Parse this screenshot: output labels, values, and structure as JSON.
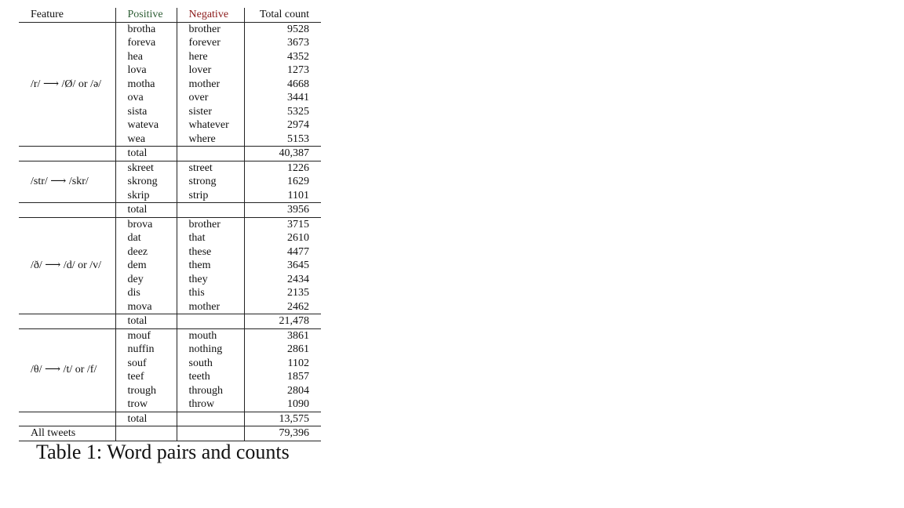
{
  "table": {
    "headers": {
      "feature": "Feature",
      "positive": "Positive",
      "negative": "Negative",
      "total": "Total count"
    },
    "colors": {
      "positive": "#2e5e35",
      "negative": "#8b1a1a"
    },
    "groups": [
      {
        "feature": "/r/ ⟶ /Ø/ or /ə/",
        "rows": [
          [
            "brotha",
            "brother",
            "9528"
          ],
          [
            "foreva",
            "forever",
            "3673"
          ],
          [
            "hea",
            "here",
            "4352"
          ],
          [
            "lova",
            "lover",
            "1273"
          ],
          [
            "motha",
            "mother",
            "4668"
          ],
          [
            "ova",
            "over",
            "3441"
          ],
          [
            "sista",
            "sister",
            "5325"
          ],
          [
            "wateva",
            "whatever",
            "2974"
          ],
          [
            "wea",
            "where",
            "5153"
          ]
        ],
        "total_label": "total",
        "total": "40,387"
      },
      {
        "feature": "/str/ ⟶ /skr/",
        "rows": [
          [
            "skreet",
            "street",
            "1226"
          ],
          [
            "skrong",
            "strong",
            "1629"
          ],
          [
            "skrip",
            "strip",
            "1101"
          ]
        ],
        "total_label": "total",
        "total": "3956"
      },
      {
        "feature": "/ð/ ⟶ /d/ or /v/",
        "rows": [
          [
            "brova",
            "brother",
            "3715"
          ],
          [
            "dat",
            "that",
            "2610"
          ],
          [
            "deez",
            "these",
            "4477"
          ],
          [
            "dem",
            "them",
            "3645"
          ],
          [
            "dey",
            "they",
            "2434"
          ],
          [
            "dis",
            "this",
            "2135"
          ],
          [
            "mova",
            "mother",
            "2462"
          ]
        ],
        "total_label": "total",
        "total": "21,478"
      },
      {
        "feature": "/θ/ ⟶ /t/ or /f/",
        "rows": [
          [
            "mouf",
            "mouth",
            "3861"
          ],
          [
            "nuffin",
            "nothing",
            "2861"
          ],
          [
            "souf",
            "south",
            "1102"
          ],
          [
            "teef",
            "teeth",
            "1857"
          ],
          [
            "trough",
            "through",
            "2804"
          ],
          [
            "trow",
            "throw",
            "1090"
          ]
        ],
        "total_label": "total",
        "total": "13,575"
      }
    ],
    "all_tweets": {
      "label": "All tweets",
      "total": "79,396"
    }
  },
  "caption": "Table 1: Word pairs and counts"
}
